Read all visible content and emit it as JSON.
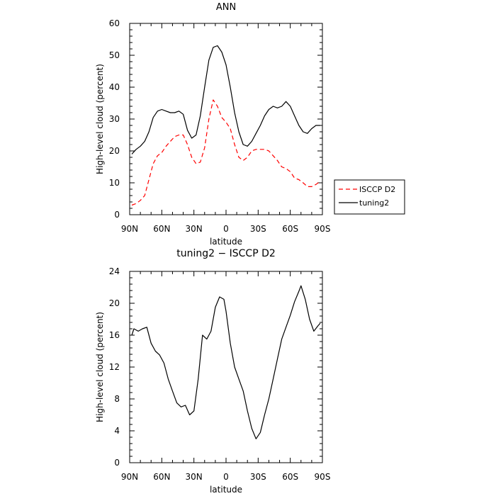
{
  "chart_data": [
    {
      "type": "line",
      "title": "ANN",
      "xlabel": "latitude",
      "ylabel": "High-level cloud (percent)",
      "xlim": [
        90,
        -90
      ],
      "ylim": [
        0,
        60
      ],
      "x_ticks": [
        90,
        60,
        30,
        0,
        -30,
        -60,
        -90
      ],
      "x_tick_labels": [
        "90N",
        "60N",
        "30N",
        "0",
        "30S",
        "60S",
        "90S"
      ],
      "y_ticks": [
        0,
        10,
        20,
        30,
        40,
        50,
        60
      ],
      "y_tick_labels": [
        "0",
        "10",
        "20",
        "30",
        "40",
        "50",
        "60"
      ],
      "grid": false,
      "legend_placement": "right, outside plot",
      "series": [
        {
          "name": "ISCCP D2",
          "color": "#ff0000",
          "style": "dashed",
          "x": [
            88,
            84,
            80,
            76,
            72,
            68,
            64,
            60,
            56,
            52,
            48,
            44,
            40,
            36,
            32,
            28,
            24,
            20,
            16,
            12,
            8,
            4,
            0,
            -4,
            -8,
            -12,
            -16,
            -20,
            -24,
            -28,
            -32,
            -36,
            -40,
            -44,
            -48,
            -52,
            -56,
            -60,
            -64,
            -68,
            -72,
            -76,
            -80,
            -84,
            -88
          ],
          "y": [
            3,
            3.5,
            4.5,
            6,
            11,
            16,
            18.5,
            19.5,
            21.5,
            23,
            24.5,
            25,
            25,
            22,
            18,
            16,
            16.5,
            21,
            30,
            36,
            34,
            30.5,
            29,
            27,
            22,
            18,
            17,
            18,
            20,
            20.5,
            20.5,
            20.5,
            20,
            18.5,
            17,
            15,
            14.5,
            13.5,
            11.5,
            11,
            10,
            8.8,
            8.8,
            9.5,
            10.5
          ]
        },
        {
          "name": "tuning2",
          "color": "#000000",
          "style": "solid",
          "x": [
            88,
            84,
            80,
            76,
            72,
            68,
            64,
            60,
            56,
            52,
            48,
            44,
            40,
            36,
            32,
            28,
            24,
            20,
            16,
            12,
            8,
            4,
            0,
            -4,
            -8,
            -12,
            -16,
            -20,
            -24,
            -28,
            -32,
            -36,
            -40,
            -44,
            -48,
            -52,
            -56,
            -60,
            -64,
            -68,
            -72,
            -76,
            -80,
            -84,
            -88
          ],
          "y": [
            19,
            20.5,
            21.5,
            23,
            26,
            30.5,
            32.5,
            33,
            32.5,
            32,
            32,
            32.5,
            31.5,
            26.5,
            24,
            25,
            31,
            40,
            48.5,
            52.5,
            53,
            51,
            47,
            40,
            32,
            26,
            22,
            21.5,
            23,
            25.5,
            28,
            31,
            33,
            34,
            33.5,
            34,
            35.5,
            34,
            31,
            28,
            26,
            25.5,
            27,
            28,
            28
          ]
        }
      ]
    },
    {
      "type": "line",
      "title": "tuning2 − ISCCP D2",
      "xlabel": "latitude",
      "ylabel": "High-level cloud (percent)",
      "xlim": [
        90,
        -90
      ],
      "ylim": [
        0,
        24
      ],
      "x_ticks": [
        90,
        60,
        30,
        0,
        -30,
        -60,
        -90
      ],
      "x_tick_labels": [
        "90N",
        "60N",
        "30N",
        "0",
        "30S",
        "60S",
        "90S"
      ],
      "y_ticks": [
        0,
        4,
        8,
        12,
        16,
        20,
        24
      ],
      "y_tick_labels": [
        "0",
        "4",
        "8",
        "12",
        "16",
        "20",
        "24"
      ],
      "grid": false,
      "series": [
        {
          "color": "#000000",
          "style": "solid",
          "x": [
            88,
            86,
            82,
            78,
            74,
            70,
            66,
            62,
            58,
            54,
            50,
            46,
            42,
            38,
            34,
            30,
            26,
            22,
            18,
            14,
            10,
            6,
            2,
            0,
            -4,
            -8,
            -12,
            -16,
            -20,
            -24,
            -28,
            -32,
            -36,
            -40,
            -44,
            -48,
            -52,
            -56,
            -60,
            -64,
            -68,
            -70,
            -74,
            -78,
            -82,
            -86,
            -88
          ],
          "y": [
            16,
            16.8,
            16.5,
            16.8,
            17,
            15,
            14,
            13.5,
            12.5,
            10.5,
            9,
            7.5,
            7,
            7.2,
            6,
            6.5,
            10.5,
            16,
            15.5,
            16.5,
            19.5,
            20.8,
            20.5,
            19,
            15,
            12,
            10.5,
            9,
            6.5,
            4.3,
            3,
            3.8,
            6,
            8,
            10.5,
            13,
            15.5,
            17,
            18.5,
            20.2,
            21.5,
            22.2,
            20.5,
            18,
            16.5,
            17.2,
            17.5
          ]
        }
      ]
    }
  ],
  "legend": {
    "items": [
      {
        "label": "ISCCP D2",
        "color": "#ff0000",
        "style": "dashed"
      },
      {
        "label": "tuning2",
        "color": "#000000",
        "style": "solid"
      }
    ]
  }
}
